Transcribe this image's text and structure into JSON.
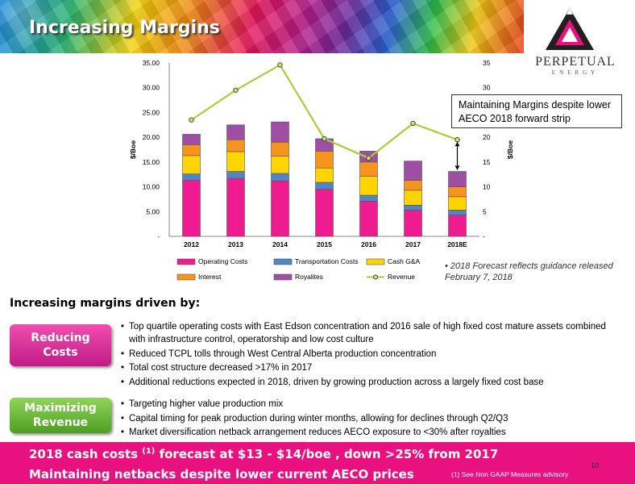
{
  "slide": {
    "title": "Increasing Margins",
    "logo_name": "PERPETUAL",
    "logo_sub": "ENERGY",
    "callout": "Maintaining Margins despite lower AECO 2018 forward strip",
    "forecast_note": "2018 Forecast reflects guidance released February 7, 2018",
    "heading": "Increasing margins driven by:",
    "reducing_line1": "Reducing",
    "reducing_line2": "Costs",
    "max_line1": "Maximizing",
    "max_line2": "Revenue",
    "reducing_bullets": [
      "Top quartile operating costs with East Edson concentration and 2016 sale of high fixed cost mature assets combined with infrastructure control, operatorship and low cost culture",
      "Reduced TCPL tolls through West Central Alberta production concentration",
      "Total cost structure decreased >17% in 2017",
      "Additional reductions expected in 2018, driven by growing production across a largely fixed cost base"
    ],
    "revenue_bullets": [
      "Targeting higher value production mix",
      "Capital timing for peak production during winter months, allowing for declines through Q2/Q3",
      "Market diversification netback arrangement reduces AECO exposure to <30% after royalties"
    ],
    "footer_line1_a": "2018 cash costs ",
    "footer_line1_sup": "(1)",
    "footer_line1_b": " forecast at $13 - $14/boe , down >25% from 2017",
    "footer_line2": "Maintaining netbacks despite lower current AECO prices",
    "footer_note": "(1) See Non GAAP Measures advisory",
    "page_number": "10"
  },
  "chart_data": {
    "type": "bar",
    "stacked": true,
    "categories": [
      "2012",
      "2013",
      "2014",
      "2015",
      "2016",
      "2017",
      "2018E"
    ],
    "y_left_label": "$/Boe",
    "y_right_label": "$/Boe",
    "y_left_ticks": [
      "-",
      "5.00",
      "10.00",
      "15.00",
      "20.00",
      "25.00",
      "30.00",
      "35.00"
    ],
    "y_right_ticks": [
      "-",
      "5",
      "10",
      "15",
      "20",
      "25",
      "30",
      "35"
    ],
    "ylim": [
      0,
      35
    ],
    "series": [
      {
        "name": "Operating Costs",
        "color": "#ee1c8f",
        "values": [
          11.3,
          11.7,
          11.2,
          9.5,
          7.1,
          5.3,
          4.3
        ]
      },
      {
        "name": "Transportation Costs",
        "color": "#4f86c6",
        "values": [
          1.3,
          1.4,
          1.5,
          1.4,
          1.2,
          1.0,
          1.0
        ]
      },
      {
        "name": "Cash G&A",
        "color": "#ffd400",
        "values": [
          3.7,
          4.0,
          3.5,
          2.9,
          3.8,
          3.0,
          2.7
        ]
      },
      {
        "name": "Interest",
        "color": "#f7941d",
        "values": [
          2.2,
          2.4,
          2.8,
          3.4,
          2.9,
          2.0,
          2.0
        ]
      },
      {
        "name": "Royalites",
        "color": "#9e4ea3",
        "values": [
          2.1,
          3.0,
          4.1,
          2.5,
          2.2,
          3.9,
          3.1
        ]
      }
    ],
    "line_series": {
      "name": "Revenue",
      "color": "#a8cf38",
      "values": [
        23.5,
        29.5,
        34.6,
        19.7,
        15.8,
        22.8,
        19.5
      ]
    },
    "legend_position": "bottom"
  }
}
